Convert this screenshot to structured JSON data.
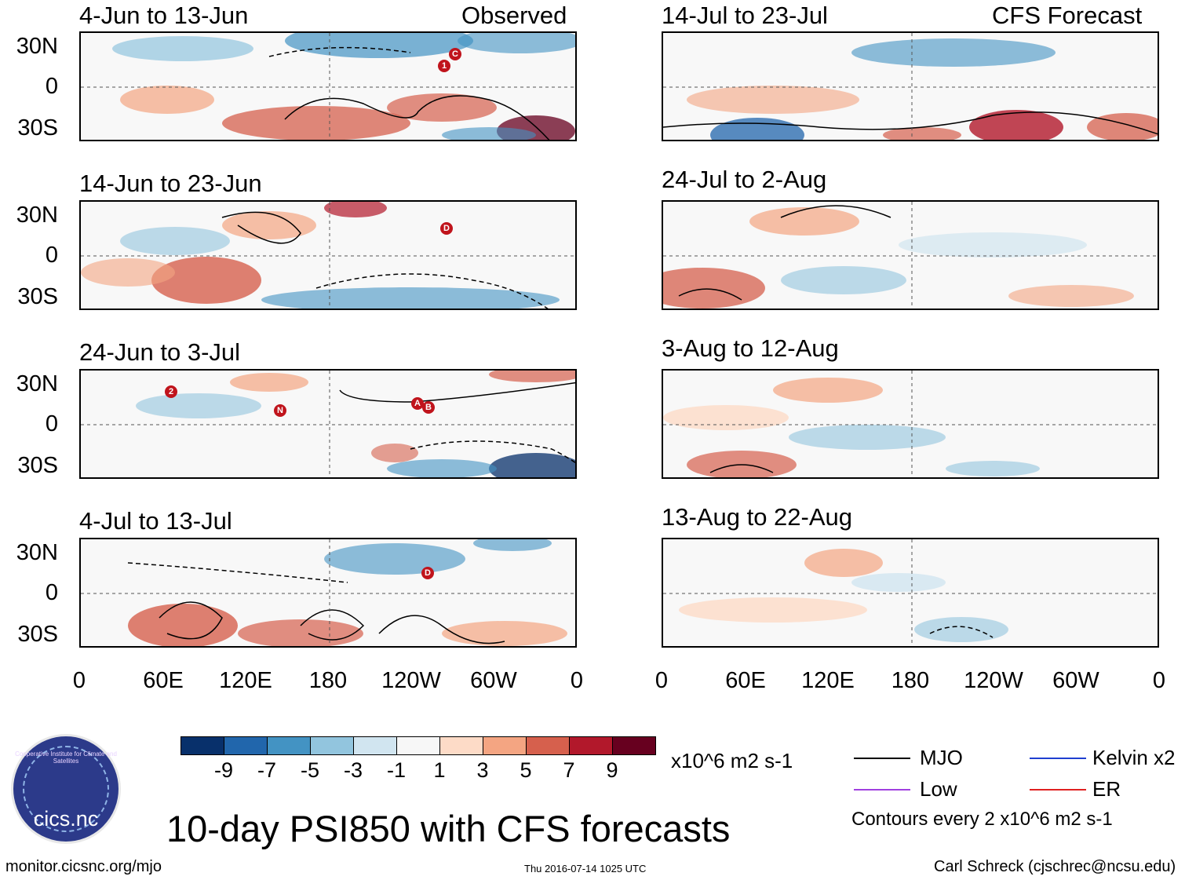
{
  "panels": [
    {
      "title_left": "4-Jun to 13-Jun",
      "title_right": "Observed"
    },
    {
      "title_left": "14-Jun to 23-Jun",
      "title_right": ""
    },
    {
      "title_left": "24-Jun to 3-Jul",
      "title_right": ""
    },
    {
      "title_left": "4-Jul to 13-Jul",
      "title_right": ""
    },
    {
      "title_left": "14-Jul to 23-Jul",
      "title_right": "CFS Forecast"
    },
    {
      "title_left": "24-Jul to 2-Aug",
      "title_right": ""
    },
    {
      "title_left": "3-Aug to 12-Aug",
      "title_right": ""
    },
    {
      "title_left": "13-Aug to 22-Aug",
      "title_right": ""
    }
  ],
  "y_ticks": [
    "30N",
    "0",
    "30S"
  ],
  "x_ticks": [
    "0",
    "60E",
    "120E",
    "180",
    "120W",
    "60W",
    "0"
  ],
  "storm_markers": [
    "1",
    "C",
    "D",
    "2",
    "N",
    "A",
    "B",
    "D"
  ],
  "colorbar": {
    "colors": [
      "#08306b",
      "#2166ac",
      "#4393c3",
      "#92c5de",
      "#d1e5f0",
      "#f7f7f7",
      "#fddbc7",
      "#f4a582",
      "#d6604d",
      "#b2182b",
      "#67001f"
    ],
    "labels": [
      "-9",
      "-7",
      "-5",
      "-3",
      "-1",
      "1",
      "3",
      "5",
      "7",
      "9"
    ],
    "units": "x10^6 m2 s-1"
  },
  "legend": {
    "items": [
      {
        "label": "MJO",
        "color": "#000000"
      },
      {
        "label": "Kelvin x2",
        "color": "#1f3fd0"
      },
      {
        "label": "Low",
        "color": "#a040e0"
      },
      {
        "label": "ER",
        "color": "#e02020"
      }
    ],
    "contours_note": "Contours every 2 x10^6 m2 s-1"
  },
  "logo": {
    "text": "cics.nc",
    "ring_text": "Cooperative Institute for Climate and Satellites"
  },
  "main_title": "10-day PSI850 with CFS forecasts",
  "footer": {
    "left": "monitor.cicsnc.org/mjo",
    "center": "Thu 2016-07-14 1025 UTC",
    "right": "Carl Schreck (cjschrec@ncsu.edu)"
  }
}
